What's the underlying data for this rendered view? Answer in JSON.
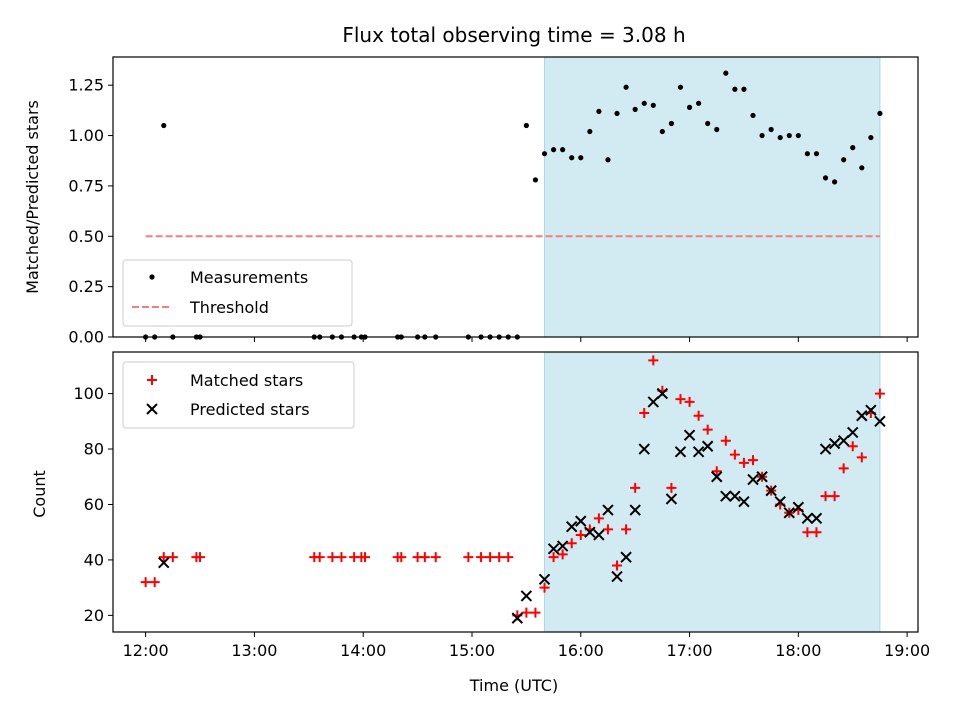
{
  "title": "Flux total observing time = 3.08 h",
  "colors": {
    "shade": "#add8e6",
    "threshold": "#f08080",
    "matched": "#ff0000",
    "predicted": "#000000",
    "measurement": "#000000"
  },
  "chart_data": [
    {
      "type": "scatter",
      "ylabel": "Matched/Predicted stars",
      "xlabel": "",
      "ylim": [
        0,
        1.39
      ],
      "xlim": [
        "11:42",
        "19:06"
      ],
      "yticks": [
        "0.00",
        "0.25",
        "0.50",
        "0.75",
        "1.00",
        "1.25"
      ],
      "grid": false,
      "legend_position": "lower-left",
      "shaded_interval": [
        "15:40",
        "18:45"
      ],
      "threshold": {
        "name": "Threshold",
        "y": 0.5,
        "x_range": [
          "12:00",
          "18:45"
        ],
        "style": "dashed"
      },
      "series": [
        {
          "name": "Measurements",
          "marker": "dot",
          "points": [
            [
              "12:00",
              0.0
            ],
            [
              "12:05",
              0.0
            ],
            [
              "12:10",
              1.05
            ],
            [
              "12:15",
              0.0
            ],
            [
              "12:28",
              0.0
            ],
            [
              "12:30",
              0.0
            ],
            [
              "13:33",
              0.0
            ],
            [
              "13:36",
              0.0
            ],
            [
              "13:43",
              0.0
            ],
            [
              "13:48",
              0.0
            ],
            [
              "13:55",
              0.0
            ],
            [
              "13:59",
              0.0
            ],
            [
              "14:01",
              0.0
            ],
            [
              "14:19",
              0.0
            ],
            [
              "14:21",
              0.0
            ],
            [
              "14:30",
              0.0
            ],
            [
              "14:34",
              0.0
            ],
            [
              "14:40",
              0.0
            ],
            [
              "14:58",
              0.0
            ],
            [
              "15:05",
              0.0
            ],
            [
              "15:10",
              0.0
            ],
            [
              "15:15",
              0.0
            ],
            [
              "15:20",
              0.0
            ],
            [
              "15:25",
              0.0
            ],
            [
              "15:30",
              1.05
            ],
            [
              "15:35",
              0.78
            ],
            [
              "15:40",
              0.91
            ],
            [
              "15:45",
              0.93
            ],
            [
              "15:50",
              0.93
            ],
            [
              "15:55",
              0.89
            ],
            [
              "16:00",
              0.89
            ],
            [
              "16:05",
              1.02
            ],
            [
              "16:10",
              1.12
            ],
            [
              "16:15",
              0.88
            ],
            [
              "16:20",
              1.11
            ],
            [
              "16:25",
              1.24
            ],
            [
              "16:30",
              1.13
            ],
            [
              "16:35",
              1.16
            ],
            [
              "16:40",
              1.15
            ],
            [
              "16:45",
              1.02
            ],
            [
              "16:50",
              1.06
            ],
            [
              "16:55",
              1.24
            ],
            [
              "17:00",
              1.14
            ],
            [
              "17:05",
              1.16
            ],
            [
              "17:10",
              1.06
            ],
            [
              "17:15",
              1.03
            ],
            [
              "17:20",
              1.31
            ],
            [
              "17:25",
              1.23
            ],
            [
              "17:30",
              1.23
            ],
            [
              "17:35",
              1.1
            ],
            [
              "17:40",
              1.0
            ],
            [
              "17:45",
              1.03
            ],
            [
              "17:50",
              0.99
            ],
            [
              "17:55",
              1.0
            ],
            [
              "18:00",
              1.0
            ],
            [
              "18:05",
              0.91
            ],
            [
              "18:10",
              0.91
            ],
            [
              "18:15",
              0.79
            ],
            [
              "18:20",
              0.77
            ],
            [
              "18:25",
              0.88
            ],
            [
              "18:30",
              0.94
            ],
            [
              "18:35",
              0.84
            ],
            [
              "18:40",
              0.99
            ],
            [
              "18:45",
              1.11
            ]
          ]
        }
      ]
    },
    {
      "type": "scatter",
      "ylabel": "Count",
      "xlabel": "Time (UTC)",
      "ylim": [
        14,
        115
      ],
      "xlim": [
        "11:42",
        "19:06"
      ],
      "yticks": [
        "20",
        "40",
        "60",
        "80",
        "100"
      ],
      "xticks": [
        "12:00",
        "13:00",
        "14:00",
        "15:00",
        "16:00",
        "17:00",
        "18:00",
        "19:00"
      ],
      "grid": false,
      "legend_position": "upper-left",
      "shaded_interval": [
        "15:40",
        "18:45"
      ],
      "series": [
        {
          "name": "Matched stars",
          "marker": "plus",
          "points": [
            [
              "12:00",
              32
            ],
            [
              "12:05",
              32
            ],
            [
              "12:10",
              41
            ],
            [
              "12:15",
              41
            ],
            [
              "12:28",
              41
            ],
            [
              "12:30",
              41
            ],
            [
              "13:33",
              41
            ],
            [
              "13:36",
              41
            ],
            [
              "13:43",
              41
            ],
            [
              "13:48",
              41
            ],
            [
              "13:55",
              41
            ],
            [
              "13:59",
              41
            ],
            [
              "14:01",
              41
            ],
            [
              "14:19",
              41
            ],
            [
              "14:21",
              41
            ],
            [
              "14:30",
              41
            ],
            [
              "14:34",
              41
            ],
            [
              "14:40",
              41
            ],
            [
              "14:58",
              41
            ],
            [
              "15:05",
              41
            ],
            [
              "15:10",
              41
            ],
            [
              "15:15",
              41
            ],
            [
              "15:20",
              41
            ],
            [
              "15:25",
              20
            ],
            [
              "15:30",
              21
            ],
            [
              "15:35",
              21
            ],
            [
              "15:40",
              30
            ],
            [
              "15:45",
              41
            ],
            [
              "15:50",
              42
            ],
            [
              "15:55",
              46
            ],
            [
              "16:00",
              49
            ],
            [
              "16:05",
              51
            ],
            [
              "16:10",
              55
            ],
            [
              "16:15",
              51
            ],
            [
              "16:20",
              38
            ],
            [
              "16:25",
              51
            ],
            [
              "16:30",
              66
            ],
            [
              "16:35",
              93
            ],
            [
              "16:40",
              112
            ],
            [
              "16:45",
              101
            ],
            [
              "16:50",
              66
            ],
            [
              "16:55",
              98
            ],
            [
              "17:00",
              97
            ],
            [
              "17:05",
              92
            ],
            [
              "17:10",
              87
            ],
            [
              "17:15",
              72
            ],
            [
              "17:20",
              83
            ],
            [
              "17:25",
              78
            ],
            [
              "17:30",
              75
            ],
            [
              "17:35",
              76
            ],
            [
              "17:40",
              70
            ],
            [
              "17:45",
              65
            ],
            [
              "17:50",
              60
            ],
            [
              "17:55",
              57
            ],
            [
              "18:00",
              58
            ],
            [
              "18:05",
              50
            ],
            [
              "18:10",
              50
            ],
            [
              "18:15",
              63
            ],
            [
              "18:20",
              63
            ],
            [
              "18:25",
              73
            ],
            [
              "18:30",
              81
            ],
            [
              "18:35",
              77
            ],
            [
              "18:40",
              93
            ],
            [
              "18:45",
              100
            ]
          ]
        },
        {
          "name": "Predicted stars",
          "marker": "x",
          "points": [
            [
              "12:10",
              39
            ],
            [
              "15:25",
              19
            ],
            [
              "15:30",
              27
            ],
            [
              "15:40",
              33
            ],
            [
              "15:45",
              44
            ],
            [
              "15:50",
              45
            ],
            [
              "15:55",
              52
            ],
            [
              "16:00",
              54
            ],
            [
              "16:05",
              50
            ],
            [
              "16:10",
              49
            ],
            [
              "16:15",
              58
            ],
            [
              "16:20",
              34
            ],
            [
              "16:25",
              41
            ],
            [
              "16:30",
              58
            ],
            [
              "16:35",
              80
            ],
            [
              "16:40",
              97
            ],
            [
              "16:45",
              100
            ],
            [
              "16:50",
              62
            ],
            [
              "16:55",
              79
            ],
            [
              "17:00",
              85
            ],
            [
              "17:05",
              79
            ],
            [
              "17:10",
              81
            ],
            [
              "17:15",
              70
            ],
            [
              "17:20",
              63
            ],
            [
              "17:25",
              63
            ],
            [
              "17:30",
              61
            ],
            [
              "17:35",
              69
            ],
            [
              "17:40",
              70
            ],
            [
              "17:45",
              65
            ],
            [
              "17:50",
              61
            ],
            [
              "17:55",
              57
            ],
            [
              "18:00",
              59
            ],
            [
              "18:05",
              55
            ],
            [
              "18:10",
              55
            ],
            [
              "18:15",
              80
            ],
            [
              "18:20",
              82
            ],
            [
              "18:25",
              83
            ],
            [
              "18:30",
              86
            ],
            [
              "18:35",
              92
            ],
            [
              "18:40",
              94
            ],
            [
              "18:45",
              90
            ]
          ]
        }
      ]
    }
  ]
}
